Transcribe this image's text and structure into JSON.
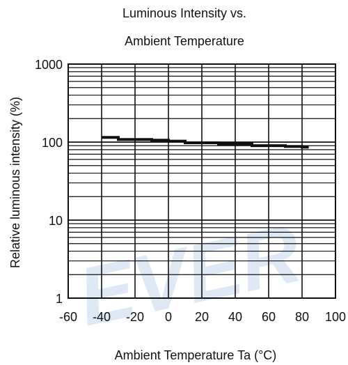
{
  "watermark": "EVER",
  "chart_data": {
    "type": "line",
    "title_lines": [
      "Luminous Intensity vs.",
      "Ambient Temperature"
    ],
    "xlabel": "Ambient Temperature Ta (°C)",
    "ylabel": "Relative luminous intensity (%)",
    "xlim": [
      -60,
      100
    ],
    "ylim": [
      1,
      1000
    ],
    "yscale": "log",
    "x_ticks": [
      "-60",
      "-40",
      "-20",
      "0",
      "20",
      "40",
      "60",
      "80",
      "100"
    ],
    "y_ticks": [
      "1",
      "10",
      "100",
      "1000"
    ],
    "grid": true,
    "series": [
      {
        "x": [
          -40,
          -30,
          -30,
          -10,
          -10,
          0,
          0,
          10,
          10,
          30,
          30,
          50,
          50,
          70,
          70,
          80,
          80,
          84
        ],
        "y": [
          115,
          115,
          108,
          108,
          106,
          106,
          103,
          103,
          98,
          98,
          95,
          95,
          90,
          90,
          88,
          88,
          86,
          86
        ]
      }
    ]
  }
}
